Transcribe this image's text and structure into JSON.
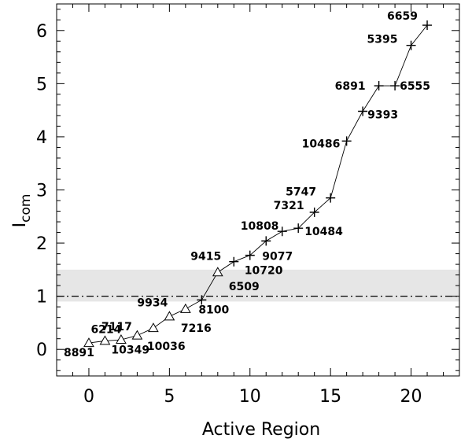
{
  "chart_data": {
    "type": "line",
    "xlabel": "Active Region",
    "ylabel_main": "I",
    "ylabel_sub": "com",
    "xlim": [
      -2,
      23
    ],
    "ylim": [
      -0.5,
      6.5
    ],
    "xticks": [
      0,
      5,
      10,
      15,
      20
    ],
    "yticks": [
      0,
      1,
      2,
      3,
      4,
      5,
      6
    ],
    "x_minor_step": 1,
    "y_minor_step": 0.2,
    "reference_line": {
      "y": 1,
      "style": "dash-dot"
    },
    "shaded_band": {
      "y_range": [
        0.9,
        1.5
      ],
      "color": "#e6e6e6"
    },
    "points": [
      {
        "x": 0,
        "y": 0.12,
        "label": "8891",
        "marker": "triangle"
      },
      {
        "x": 1,
        "y": 0.16,
        "label": "6214",
        "marker": "triangle"
      },
      {
        "x": 2,
        "y": 0.18,
        "label": "7117",
        "marker": "triangle"
      },
      {
        "x": 3,
        "y": 0.26,
        "label": "10349",
        "marker": "triangle"
      },
      {
        "x": 4,
        "y": 0.4,
        "label": "10036",
        "marker": "triangle"
      },
      {
        "x": 5,
        "y": 0.62,
        "label": "9934",
        "marker": "triangle"
      },
      {
        "x": 6,
        "y": 0.76,
        "label": "7216",
        "marker": "triangle"
      },
      {
        "x": 7,
        "y": 0.93,
        "label": "8100",
        "marker": "plus"
      },
      {
        "x": 8,
        "y": 1.45,
        "label": "6509",
        "marker": "triangle"
      },
      {
        "x": 9,
        "y": 1.65,
        "label": "9415",
        "marker": "plus"
      },
      {
        "x": 10,
        "y": 1.77,
        "label": "10720",
        "marker": "plus"
      },
      {
        "x": 11,
        "y": 2.04,
        "label": "9077",
        "marker": "plus"
      },
      {
        "x": 12,
        "y": 2.22,
        "label": "10808",
        "marker": "plus"
      },
      {
        "x": 13,
        "y": 2.28,
        "label": "10484",
        "marker": "plus"
      },
      {
        "x": 14,
        "y": 2.58,
        "label": "7321",
        "marker": "plus"
      },
      {
        "x": 15,
        "y": 2.85,
        "label": "5747",
        "marker": "plus"
      },
      {
        "x": 16,
        "y": 3.92,
        "label": "10486",
        "marker": "plus"
      },
      {
        "x": 17,
        "y": 4.48,
        "label": "9393",
        "marker": "plus"
      },
      {
        "x": 18,
        "y": 4.96,
        "label": "6891",
        "marker": "plus"
      },
      {
        "x": 19,
        "y": 4.96,
        "label": "6555",
        "marker": "plus"
      },
      {
        "x": 20,
        "y": 5.72,
        "label": "5395",
        "marker": "plus"
      },
      {
        "x": 21,
        "y": 6.1,
        "label": "6659",
        "marker": "plus"
      }
    ]
  }
}
